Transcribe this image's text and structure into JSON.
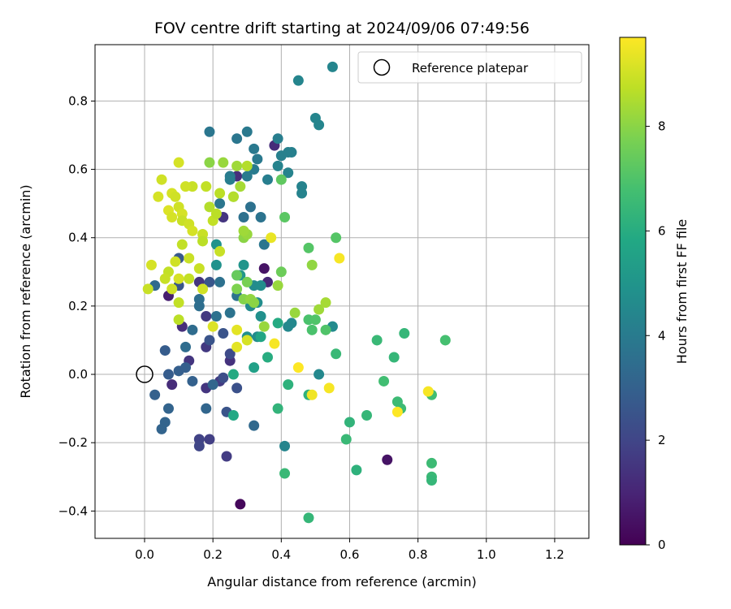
{
  "chart_data": {
    "type": "scatter",
    "title": "FOV centre drift starting at 2024/09/06 07:49:56",
    "xlabel": "Angular distance from reference (arcmin)",
    "ylabel": "Rotation from reference (arcmin)",
    "xlim": [
      -0.145,
      1.3
    ],
    "ylim": [
      -0.48,
      0.965
    ],
    "xticks": [
      0.0,
      0.2,
      0.4,
      0.6,
      0.8,
      1.0,
      1.2
    ],
    "xtick_labels": [
      "0.0",
      "0.2",
      "0.4",
      "0.6",
      "0.8",
      "1.0",
      "1.2"
    ],
    "yticks": [
      -0.4,
      -0.2,
      0.0,
      0.2,
      0.4,
      0.6,
      0.8
    ],
    "ytick_labels": [
      "−0.4",
      "−0.2",
      "0.0",
      "0.2",
      "0.4",
      "0.6",
      "0.8"
    ],
    "grid": true,
    "legend": {
      "position": "top-right",
      "entries": [
        "Reference platepar"
      ]
    },
    "reference_point": {
      "x": 0.0,
      "y": 0.0,
      "label": "Reference platepar"
    },
    "colorbar": {
      "label": "Hours from first FF file",
      "min": 0,
      "max": 9.7,
      "ticks": [
        0,
        2,
        4,
        6,
        8
      ],
      "tick_labels": [
        "0",
        "2",
        "4",
        "6",
        "8"
      ],
      "colormap": "viridis"
    },
    "points": [
      {
        "x": 0.28,
        "y": -0.38,
        "h": 0.2
      },
      {
        "x": 0.71,
        "y": -0.25,
        "h": 0.5
      },
      {
        "x": 0.35,
        "y": 0.31,
        "h": 0.5
      },
      {
        "x": 0.36,
        "y": 0.27,
        "h": 1.1
      },
      {
        "x": 0.07,
        "y": 0.23,
        "h": 0.8
      },
      {
        "x": 0.08,
        "y": -0.03,
        "h": 1.2
      },
      {
        "x": 0.38,
        "y": 0.67,
        "h": 1.2
      },
      {
        "x": 0.27,
        "y": 0.58,
        "h": 1.3
      },
      {
        "x": 0.25,
        "y": 0.04,
        "h": 1.4
      },
      {
        "x": 0.13,
        "y": 0.04,
        "h": 1.5
      },
      {
        "x": 0.11,
        "y": 0.14,
        "h": 1.3
      },
      {
        "x": 0.18,
        "y": 0.08,
        "h": 1.6
      },
      {
        "x": 0.18,
        "y": 0.17,
        "h": 1.6
      },
      {
        "x": 0.16,
        "y": 0.27,
        "h": 1.5
      },
      {
        "x": 0.23,
        "y": 0.46,
        "h": 1.5
      },
      {
        "x": 0.18,
        "y": -0.04,
        "h": 1.5
      },
      {
        "x": 0.22,
        "y": -0.02,
        "h": 1.7
      },
      {
        "x": 0.24,
        "y": -0.24,
        "h": 1.7
      },
      {
        "x": 0.19,
        "y": -0.19,
        "h": 1.8
      },
      {
        "x": 0.16,
        "y": -0.19,
        "h": 1.9
      },
      {
        "x": 0.16,
        "y": -0.21,
        "h": 2.0
      },
      {
        "x": 0.25,
        "y": 0.06,
        "h": 2.2
      },
      {
        "x": 0.23,
        "y": -0.01,
        "h": 2.3
      },
      {
        "x": 0.27,
        "y": -0.04,
        "h": 2.4
      },
      {
        "x": 0.24,
        "y": -0.11,
        "h": 2.5
      },
      {
        "x": 0.19,
        "y": 0.1,
        "h": 2.5
      },
      {
        "x": 0.23,
        "y": 0.12,
        "h": 2.5
      },
      {
        "x": 0.19,
        "y": 0.27,
        "h": 2.6
      },
      {
        "x": 0.1,
        "y": 0.26,
        "h": 2.6
      },
      {
        "x": 0.1,
        "y": 0.34,
        "h": 2.7
      },
      {
        "x": 0.06,
        "y": 0.07,
        "h": 2.8
      },
      {
        "x": 0.07,
        "y": 0.0,
        "h": 2.8
      },
      {
        "x": 0.1,
        "y": 0.01,
        "h": 2.9
      },
      {
        "x": 0.12,
        "y": 0.02,
        "h": 2.9
      },
      {
        "x": 0.14,
        "y": -0.02,
        "h": 3.0
      },
      {
        "x": 0.03,
        "y": -0.06,
        "h": 3.0
      },
      {
        "x": 0.07,
        "y": -0.1,
        "h": 3.1
      },
      {
        "x": 0.06,
        "y": -0.14,
        "h": 3.1
      },
      {
        "x": 0.05,
        "y": -0.16,
        "h": 3.1
      },
      {
        "x": 0.18,
        "y": -0.1,
        "h": 3.2
      },
      {
        "x": 0.2,
        "y": -0.03,
        "h": 3.2
      },
      {
        "x": 0.32,
        "y": -0.15,
        "h": 3.3
      },
      {
        "x": 0.03,
        "y": 0.26,
        "h": 3.3
      },
      {
        "x": 0.12,
        "y": 0.08,
        "h": 3.4
      },
      {
        "x": 0.14,
        "y": 0.13,
        "h": 3.4
      },
      {
        "x": 0.16,
        "y": 0.2,
        "h": 3.5
      },
      {
        "x": 0.16,
        "y": 0.22,
        "h": 3.5
      },
      {
        "x": 0.21,
        "y": 0.17,
        "h": 3.6
      },
      {
        "x": 0.22,
        "y": 0.27,
        "h": 3.6
      },
      {
        "x": 0.25,
        "y": 0.18,
        "h": 3.7
      },
      {
        "x": 0.27,
        "y": 0.23,
        "h": 3.7
      },
      {
        "x": 0.29,
        "y": 0.46,
        "h": 3.6
      },
      {
        "x": 0.31,
        "y": 0.49,
        "h": 3.6
      },
      {
        "x": 0.34,
        "y": 0.46,
        "h": 3.7
      },
      {
        "x": 0.35,
        "y": 0.38,
        "h": 3.8
      },
      {
        "x": 0.22,
        "y": 0.5,
        "h": 3.8
      },
      {
        "x": 0.19,
        "y": 0.71,
        "h": 3.8
      },
      {
        "x": 0.27,
        "y": 0.69,
        "h": 3.8
      },
      {
        "x": 0.3,
        "y": 0.71,
        "h": 3.9
      },
      {
        "x": 0.32,
        "y": 0.66,
        "h": 3.9
      },
      {
        "x": 0.33,
        "y": 0.63,
        "h": 3.9
      },
      {
        "x": 0.32,
        "y": 0.6,
        "h": 4.0
      },
      {
        "x": 0.3,
        "y": 0.58,
        "h": 4.0
      },
      {
        "x": 0.25,
        "y": 0.58,
        "h": 4.0
      },
      {
        "x": 0.25,
        "y": 0.57,
        "h": 4.1
      },
      {
        "x": 0.36,
        "y": 0.57,
        "h": 4.1
      },
      {
        "x": 0.39,
        "y": 0.69,
        "h": 4.1
      },
      {
        "x": 0.4,
        "y": 0.64,
        "h": 4.2
      },
      {
        "x": 0.42,
        "y": 0.65,
        "h": 4.2
      },
      {
        "x": 0.43,
        "y": 0.65,
        "h": 4.2
      },
      {
        "x": 0.39,
        "y": 0.61,
        "h": 4.3
      },
      {
        "x": 0.42,
        "y": 0.59,
        "h": 4.3
      },
      {
        "x": 0.46,
        "y": 0.55,
        "h": 4.3
      },
      {
        "x": 0.46,
        "y": 0.53,
        "h": 4.3
      },
      {
        "x": 0.45,
        "y": 0.86,
        "h": 4.4
      },
      {
        "x": 0.55,
        "y": 0.9,
        "h": 4.4
      },
      {
        "x": 0.5,
        "y": 0.75,
        "h": 4.4
      },
      {
        "x": 0.51,
        "y": 0.73,
        "h": 4.4
      },
      {
        "x": 0.42,
        "y": 0.14,
        "h": 4.5
      },
      {
        "x": 0.43,
        "y": 0.15,
        "h": 4.5
      },
      {
        "x": 0.33,
        "y": 0.11,
        "h": 4.6
      },
      {
        "x": 0.31,
        "y": 0.2,
        "h": 4.6
      },
      {
        "x": 0.32,
        "y": 0.26,
        "h": 4.6
      },
      {
        "x": 0.34,
        "y": 0.26,
        "h": 4.7
      },
      {
        "x": 0.33,
        "y": 0.21,
        "h": 4.7
      },
      {
        "x": 0.34,
        "y": 0.17,
        "h": 4.8
      },
      {
        "x": 0.3,
        "y": 0.11,
        "h": 4.8
      },
      {
        "x": 0.21,
        "y": 0.32,
        "h": 4.9
      },
      {
        "x": 0.21,
        "y": 0.38,
        "h": 4.9
      },
      {
        "x": 0.29,
        "y": 0.32,
        "h": 5.0
      },
      {
        "x": 0.28,
        "y": 0.29,
        "h": 5.1
      },
      {
        "x": 0.27,
        "y": 0.29,
        "h": 5.1
      },
      {
        "x": 0.41,
        "y": -0.21,
        "h": 4.4
      },
      {
        "x": 0.51,
        "y": 0.0,
        "h": 4.5
      },
      {
        "x": 0.55,
        "y": 0.14,
        "h": 4.6
      },
      {
        "x": 0.32,
        "y": 0.02,
        "h": 5.5
      },
      {
        "x": 0.26,
        "y": -0.12,
        "h": 5.8
      },
      {
        "x": 0.26,
        "y": 0.0,
        "h": 5.9
      },
      {
        "x": 0.34,
        "y": 0.11,
        "h": 5.7
      },
      {
        "x": 0.36,
        "y": 0.05,
        "h": 6.0
      },
      {
        "x": 0.39,
        "y": 0.15,
        "h": 5.9
      },
      {
        "x": 0.39,
        "y": -0.1,
        "h": 6.3
      },
      {
        "x": 0.42,
        "y": -0.03,
        "h": 6.2
      },
      {
        "x": 0.48,
        "y": -0.06,
        "h": 6.2
      },
      {
        "x": 0.48,
        "y": -0.42,
        "h": 6.4
      },
      {
        "x": 0.41,
        "y": -0.29,
        "h": 6.5
      },
      {
        "x": 0.59,
        "y": -0.19,
        "h": 6.5
      },
      {
        "x": 0.6,
        "y": -0.14,
        "h": 6.3
      },
      {
        "x": 0.62,
        "y": -0.28,
        "h": 6.2
      },
      {
        "x": 0.65,
        "y": -0.12,
        "h": 6.4
      },
      {
        "x": 0.56,
        "y": 0.06,
        "h": 6.5
      },
      {
        "x": 0.68,
        "y": 0.1,
        "h": 6.5
      },
      {
        "x": 0.73,
        "y": 0.05,
        "h": 6.4
      },
      {
        "x": 0.76,
        "y": 0.12,
        "h": 6.4
      },
      {
        "x": 0.7,
        "y": -0.02,
        "h": 6.7
      },
      {
        "x": 0.74,
        "y": -0.08,
        "h": 6.6
      },
      {
        "x": 0.75,
        "y": -0.1,
        "h": 6.6
      },
      {
        "x": 0.84,
        "y": -0.26,
        "h": 6.6
      },
      {
        "x": 0.84,
        "y": -0.3,
        "h": 6.5
      },
      {
        "x": 0.84,
        "y": -0.31,
        "h": 6.4
      },
      {
        "x": 0.84,
        "y": -0.06,
        "h": 6.7
      },
      {
        "x": 0.88,
        "y": 0.1,
        "h": 6.8
      },
      {
        "x": 0.48,
        "y": 0.16,
        "h": 6.9
      },
      {
        "x": 0.49,
        "y": 0.13,
        "h": 6.9
      },
      {
        "x": 0.5,
        "y": 0.16,
        "h": 7.0
      },
      {
        "x": 0.53,
        "y": 0.13,
        "h": 7.0
      },
      {
        "x": 0.48,
        "y": 0.37,
        "h": 7.1
      },
      {
        "x": 0.56,
        "y": 0.4,
        "h": 7.1
      },
      {
        "x": 0.41,
        "y": 0.46,
        "h": 7.2
      },
      {
        "x": 0.4,
        "y": 0.57,
        "h": 7.3
      },
      {
        "x": 0.4,
        "y": 0.3,
        "h": 7.5
      },
      {
        "x": 0.27,
        "y": 0.29,
        "h": 7.4
      },
      {
        "x": 0.3,
        "y": 0.27,
        "h": 7.7
      },
      {
        "x": 0.27,
        "y": 0.25,
        "h": 7.8
      },
      {
        "x": 0.29,
        "y": 0.22,
        "h": 7.9
      },
      {
        "x": 0.31,
        "y": 0.22,
        "h": 8.1
      },
      {
        "x": 0.32,
        "y": 0.21,
        "h": 8.0
      },
      {
        "x": 0.26,
        "y": 0.52,
        "h": 7.5
      },
      {
        "x": 0.29,
        "y": 0.4,
        "h": 8.0
      },
      {
        "x": 0.3,
        "y": 0.41,
        "h": 8.2
      },
      {
        "x": 0.29,
        "y": 0.42,
        "h": 8.3
      },
      {
        "x": 0.39,
        "y": 0.26,
        "h": 8.2
      },
      {
        "x": 0.35,
        "y": 0.14,
        "h": 8.2
      },
      {
        "x": 0.44,
        "y": 0.18,
        "h": 8.2
      },
      {
        "x": 0.49,
        "y": 0.32,
        "h": 8.1
      },
      {
        "x": 0.51,
        "y": 0.19,
        "h": 8.3
      },
      {
        "x": 0.53,
        "y": 0.21,
        "h": 8.4
      },
      {
        "x": 0.19,
        "y": 0.62,
        "h": 8.0
      },
      {
        "x": 0.23,
        "y": 0.62,
        "h": 8.2
      },
      {
        "x": 0.27,
        "y": 0.61,
        "h": 8.3
      },
      {
        "x": 0.3,
        "y": 0.61,
        "h": 8.6
      },
      {
        "x": 0.28,
        "y": 0.55,
        "h": 8.4
      },
      {
        "x": 0.26,
        "y": 0.52,
        "h": 8.6
      },
      {
        "x": 0.22,
        "y": 0.53,
        "h": 8.7
      },
      {
        "x": 0.19,
        "y": 0.49,
        "h": 8.6
      },
      {
        "x": 0.2,
        "y": 0.45,
        "h": 8.8
      },
      {
        "x": 0.21,
        "y": 0.47,
        "h": 8.7
      },
      {
        "x": 0.18,
        "y": 0.55,
        "h": 8.8
      },
      {
        "x": 0.14,
        "y": 0.55,
        "h": 8.9
      },
      {
        "x": 0.12,
        "y": 0.55,
        "h": 9.0
      },
      {
        "x": 0.1,
        "y": 0.62,
        "h": 9.1
      },
      {
        "x": 0.05,
        "y": 0.57,
        "h": 9.0
      },
      {
        "x": 0.04,
        "y": 0.52,
        "h": 9.1
      },
      {
        "x": 0.08,
        "y": 0.53,
        "h": 9.1
      },
      {
        "x": 0.09,
        "y": 0.52,
        "h": 9.0
      },
      {
        "x": 0.1,
        "y": 0.49,
        "h": 9.0
      },
      {
        "x": 0.07,
        "y": 0.48,
        "h": 9.2
      },
      {
        "x": 0.08,
        "y": 0.46,
        "h": 9.1
      },
      {
        "x": 0.11,
        "y": 0.47,
        "h": 9.1
      },
      {
        "x": 0.11,
        "y": 0.45,
        "h": 8.9
      },
      {
        "x": 0.13,
        "y": 0.44,
        "h": 9.0
      },
      {
        "x": 0.14,
        "y": 0.42,
        "h": 9.1
      },
      {
        "x": 0.17,
        "y": 0.41,
        "h": 8.9
      },
      {
        "x": 0.17,
        "y": 0.39,
        "h": 8.7
      },
      {
        "x": 0.11,
        "y": 0.38,
        "h": 8.8
      },
      {
        "x": 0.09,
        "y": 0.33,
        "h": 9.0
      },
      {
        "x": 0.13,
        "y": 0.34,
        "h": 8.9
      },
      {
        "x": 0.07,
        "y": 0.3,
        "h": 8.8
      },
      {
        "x": 0.06,
        "y": 0.28,
        "h": 8.9
      },
      {
        "x": 0.1,
        "y": 0.28,
        "h": 9.1
      },
      {
        "x": 0.13,
        "y": 0.28,
        "h": 8.8
      },
      {
        "x": 0.16,
        "y": 0.31,
        "h": 8.9
      },
      {
        "x": 0.17,
        "y": 0.25,
        "h": 9.0
      },
      {
        "x": 0.22,
        "y": 0.36,
        "h": 8.9
      },
      {
        "x": 0.02,
        "y": 0.32,
        "h": 9.1
      },
      {
        "x": 0.01,
        "y": 0.25,
        "h": 8.9
      },
      {
        "x": 0.1,
        "y": 0.21,
        "h": 8.8
      },
      {
        "x": 0.08,
        "y": 0.25,
        "h": 9.0
      },
      {
        "x": 0.1,
        "y": 0.16,
        "h": 8.7
      },
      {
        "x": 0.2,
        "y": 0.14,
        "h": 9.2
      },
      {
        "x": 0.27,
        "y": 0.13,
        "h": 9.3
      },
      {
        "x": 0.27,
        "y": 0.08,
        "h": 9.3
      },
      {
        "x": 0.3,
        "y": 0.1,
        "h": 9.1
      },
      {
        "x": 0.37,
        "y": 0.4,
        "h": 9.4
      },
      {
        "x": 0.57,
        "y": 0.34,
        "h": 9.6
      },
      {
        "x": 0.38,
        "y": 0.09,
        "h": 9.6
      },
      {
        "x": 0.45,
        "y": 0.02,
        "h": 9.7
      },
      {
        "x": 0.49,
        "y": -0.06,
        "h": 9.5
      },
      {
        "x": 0.54,
        "y": -0.04,
        "h": 9.6
      },
      {
        "x": 0.74,
        "y": -0.11,
        "h": 9.7
      },
      {
        "x": 0.83,
        "y": -0.05,
        "h": 9.6
      }
    ]
  }
}
